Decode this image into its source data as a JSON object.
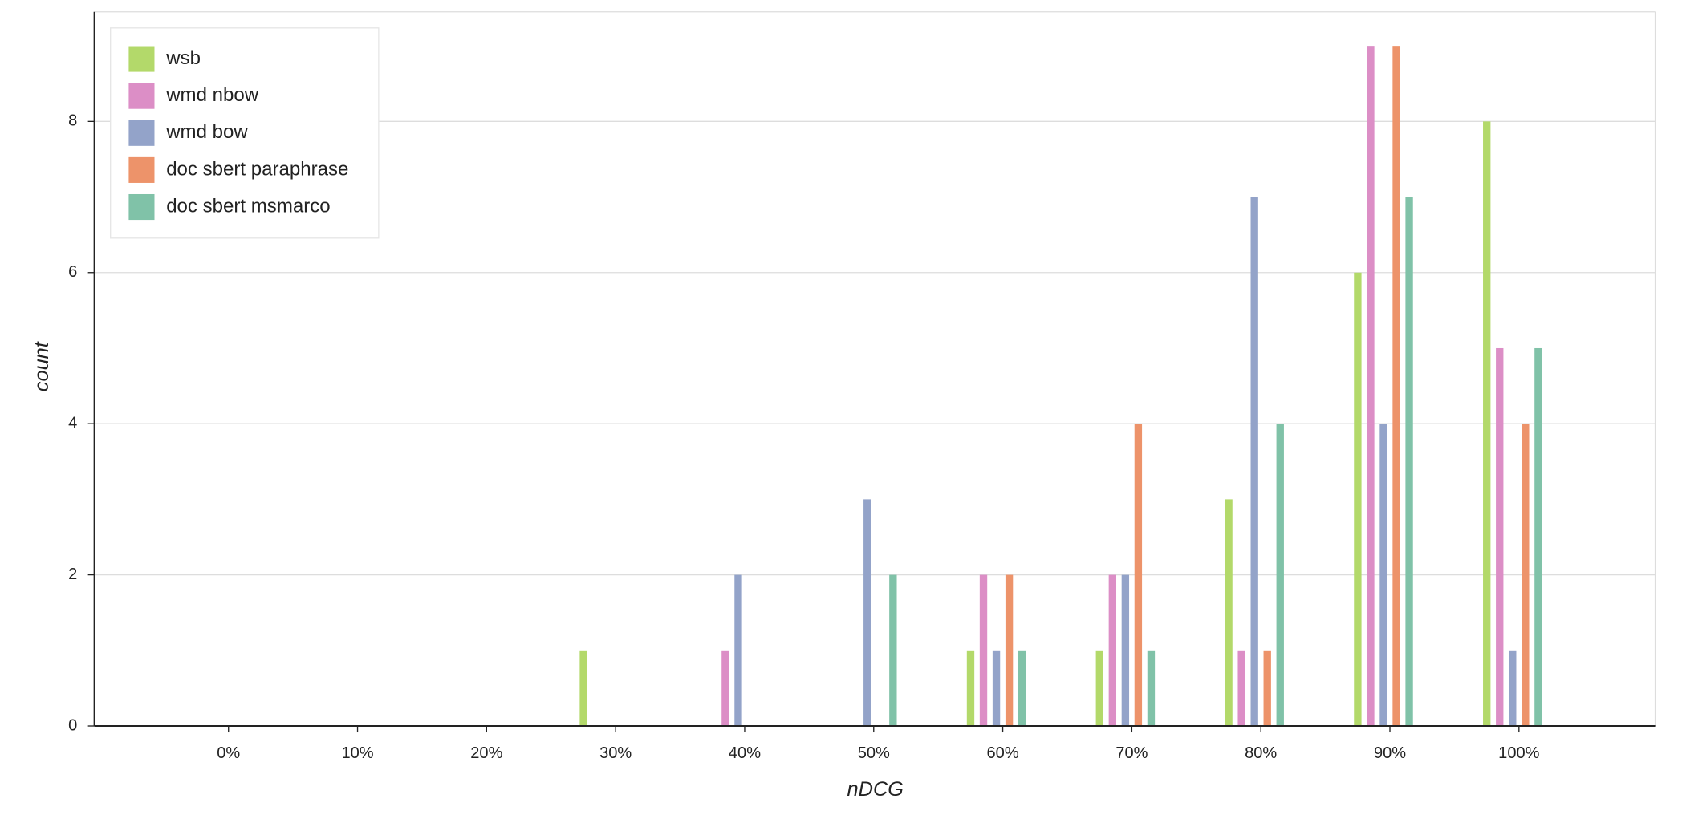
{
  "chart_data": {
    "type": "bar",
    "xlabel": "nDCG",
    "ylabel": "count",
    "categories": [
      "0%",
      "10%",
      "20%",
      "30%",
      "40%",
      "50%",
      "60%",
      "70%",
      "80%",
      "90%",
      "100%"
    ],
    "series": [
      {
        "name": "wsb",
        "color": "#b3d96a",
        "values": [
          0,
          0,
          0,
          1,
          0,
          0,
          1,
          1,
          3,
          6,
          8
        ]
      },
      {
        "name": "wmd nbow",
        "color": "#dc8ec6",
        "values": [
          0,
          0,
          0,
          0,
          1,
          0,
          2,
          2,
          1,
          9,
          5
        ]
      },
      {
        "name": "wmd bow",
        "color": "#93a3c9",
        "values": [
          0,
          0,
          0,
          0,
          2,
          3,
          1,
          2,
          7,
          4,
          1
        ]
      },
      {
        "name": "doc sbert paraphrase",
        "color": "#ed936a",
        "values": [
          0,
          0,
          0,
          0,
          0,
          0,
          2,
          4,
          1,
          9,
          4
        ]
      },
      {
        "name": "doc sbert msmarco",
        "color": "#80c2a8",
        "values": [
          0,
          0,
          0,
          0,
          0,
          2,
          1,
          1,
          4,
          7,
          5
        ]
      }
    ],
    "ylim": [
      0,
      9.45
    ],
    "yticks": [
      0,
      2,
      4,
      6,
      8
    ],
    "grid": true,
    "legend": "upper left"
  }
}
